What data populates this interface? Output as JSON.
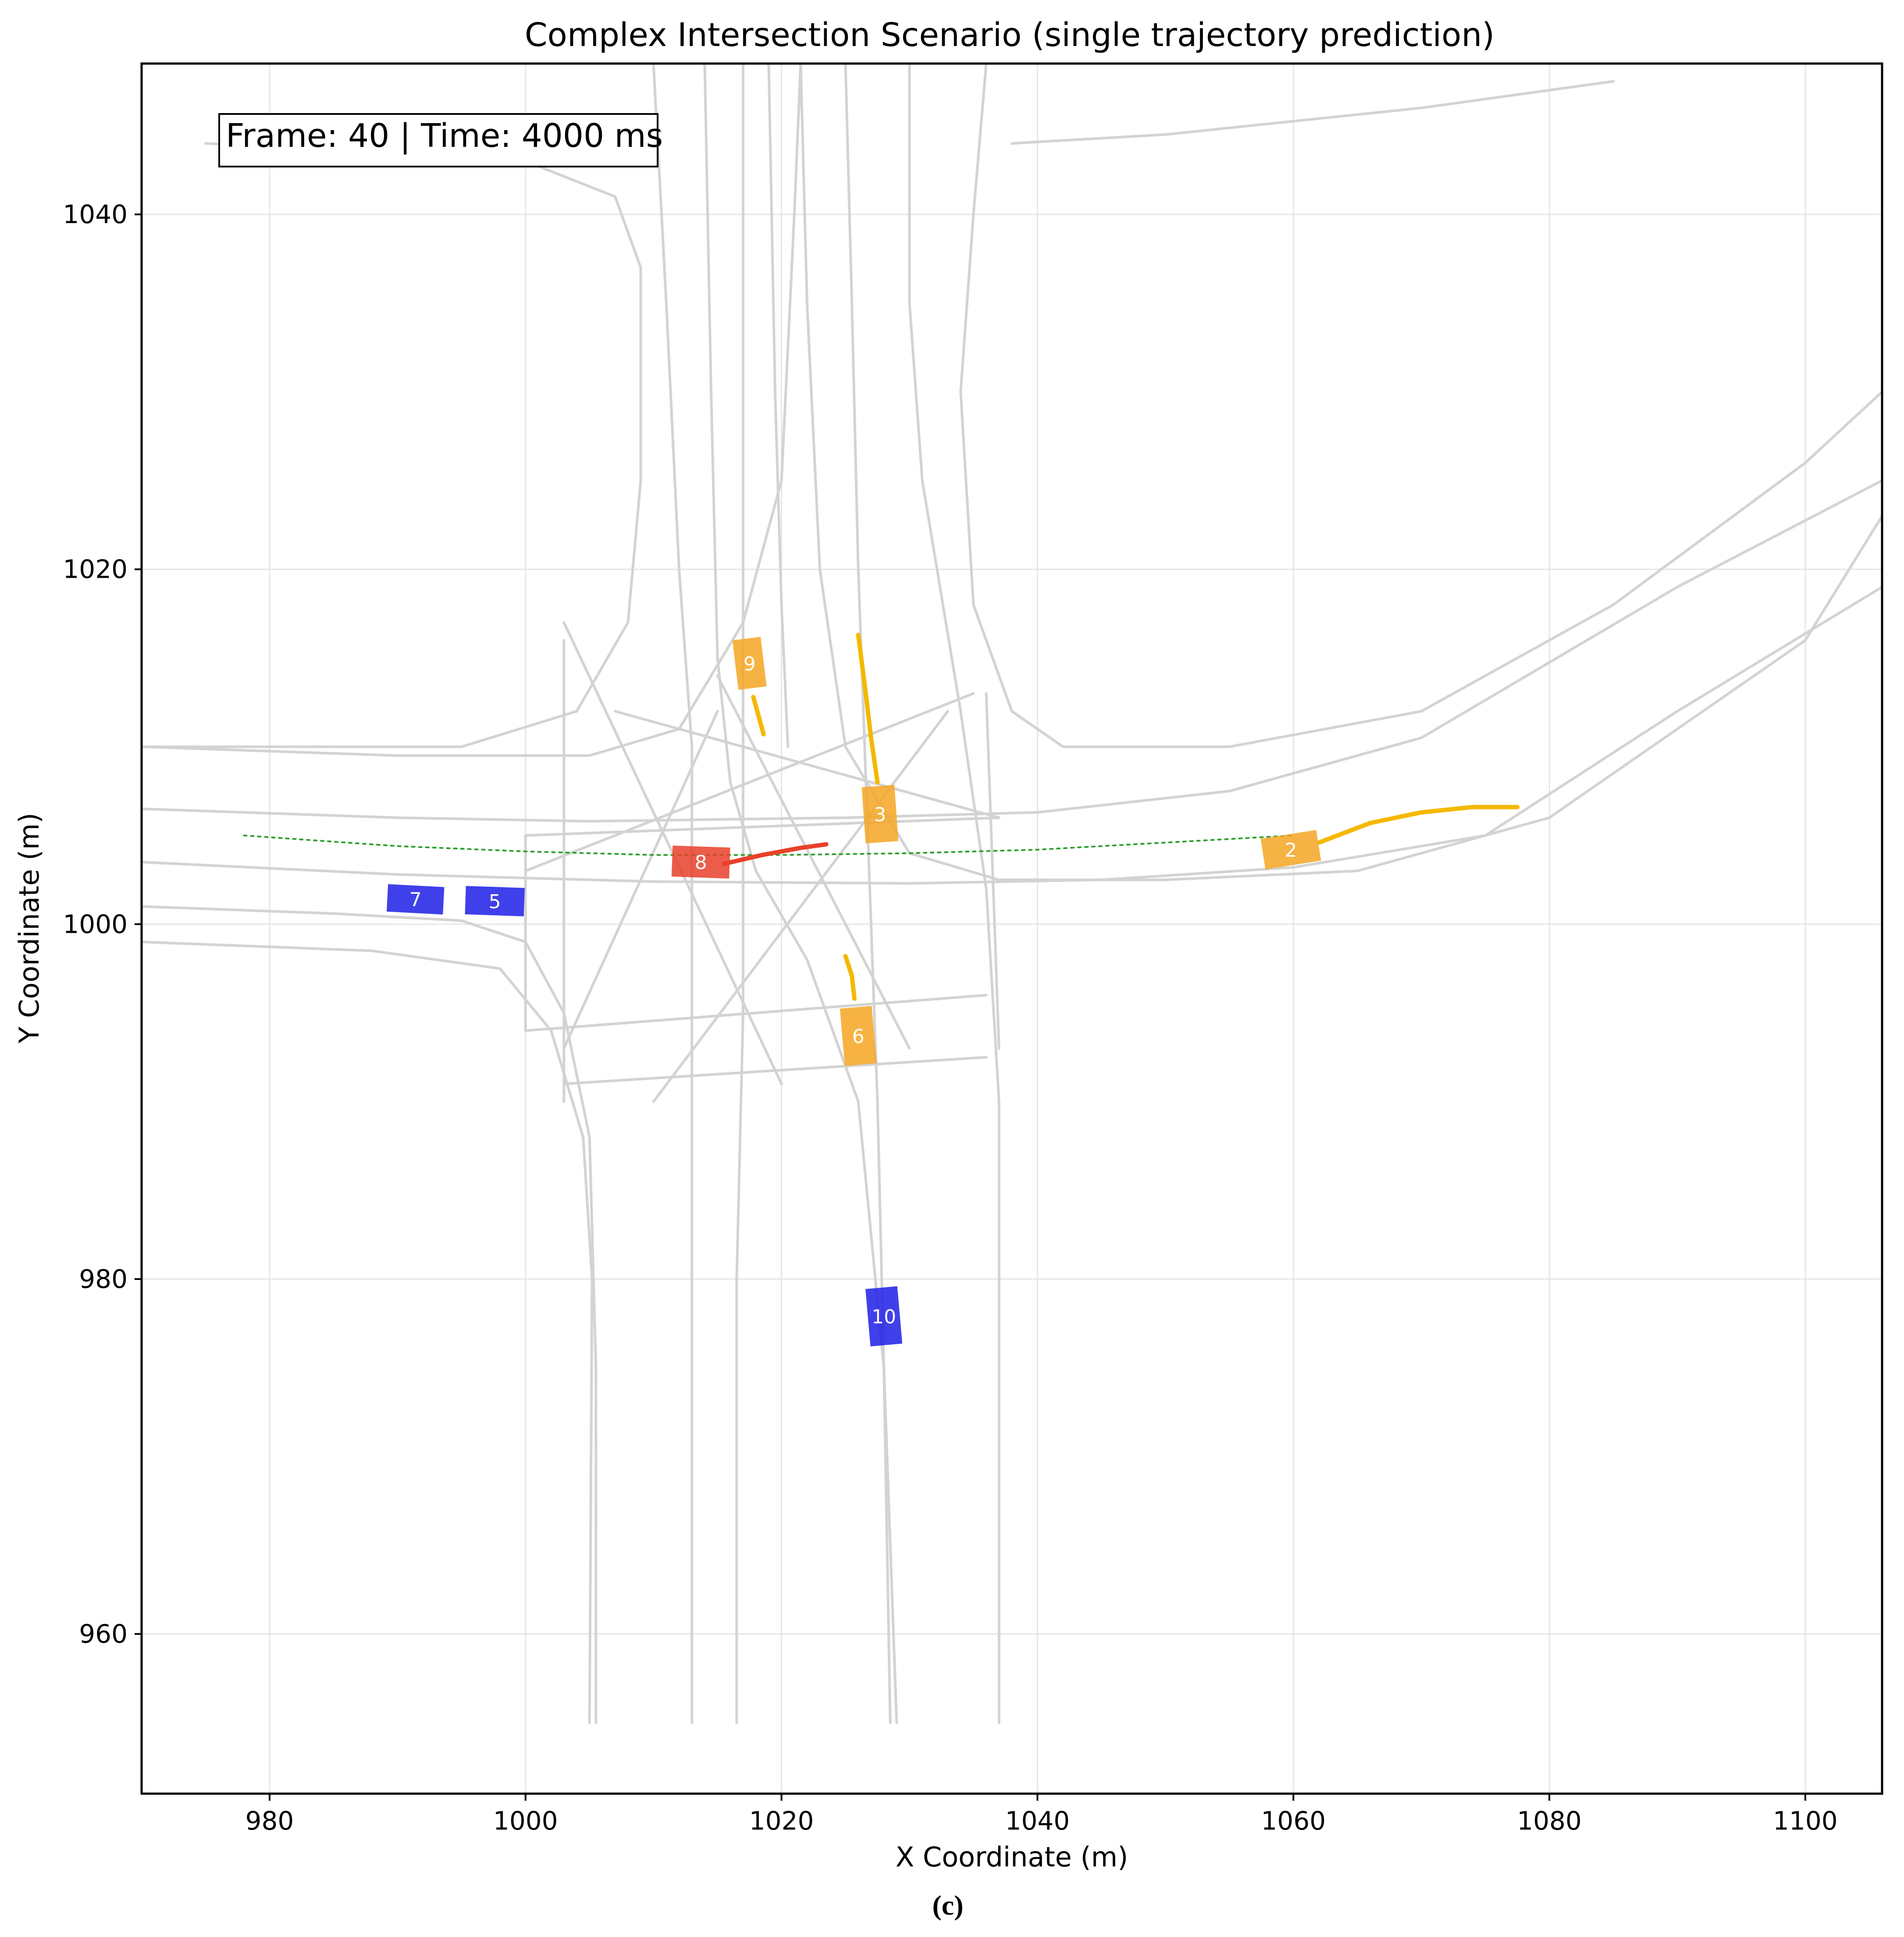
{
  "chart_data": {
    "type": "scatter",
    "title": "Complex Intersection Scenario (single trajectory prediction)",
    "xlabel": "X Coordinate (m)",
    "ylabel": "Y Coordinate (m)",
    "xlim": [
      970,
      1106
    ],
    "ylim": [
      951,
      1048.5
    ],
    "x_ticks": [
      980,
      1000,
      1020,
      1040,
      1060,
      1080,
      1100
    ],
    "y_ticks": [
      960,
      980,
      1000,
      1020,
      1040
    ],
    "x_tick_labels": [
      "980",
      "1000",
      "1020",
      "1040",
      "1060",
      "1080",
      "1100"
    ],
    "y_tick_labels": [
      "960",
      "980",
      "1000",
      "1020",
      "1040"
    ],
    "grid": true,
    "frame_info": "Frame: 40 | Time: 4000 ms",
    "reference_path": {
      "style": "dotted",
      "color": "#2ca02c",
      "points": [
        [
          978,
          1005
        ],
        [
          990,
          1004.4
        ],
        [
          1000,
          1004.1
        ],
        [
          1010,
          1003.9
        ],
        [
          1020,
          1003.9
        ],
        [
          1030,
          1004.0
        ],
        [
          1040,
          1004.2
        ],
        [
          1050,
          1004.6
        ],
        [
          1060,
          1005.0
        ]
      ]
    },
    "colors": {
      "ego": "#e8412a",
      "orange": "#f5a623",
      "blue": "#1f1fe6",
      "predicted_path": "#f5b800",
      "lane": "#d3d3d3"
    },
    "vehicles": [
      {
        "id": "2",
        "group": "orange",
        "x": 1059.8,
        "y": 1004.2,
        "length": 4.4,
        "width": 1.75,
        "heading_deg": 9,
        "trajectory": [
          [
            1062,
            1004.6
          ],
          [
            1066,
            1005.7
          ],
          [
            1070,
            1006.3
          ],
          [
            1074,
            1006.6
          ],
          [
            1077.5,
            1006.6
          ]
        ]
      },
      {
        "id": "3",
        "group": "orange",
        "x": 1027.7,
        "y": 1006.2,
        "length": 4.4,
        "width": 1.85,
        "heading_deg": 94,
        "trajectory": [
          [
            1027.5,
            1008.0
          ],
          [
            1027.0,
            1010.5
          ],
          [
            1026.5,
            1013.5
          ],
          [
            1026.0,
            1016.3
          ]
        ]
      },
      {
        "id": "6",
        "group": "orange",
        "x": 1026.0,
        "y": 993.7,
        "length": 4.5,
        "width": 1.8,
        "heading_deg": 95,
        "trajectory": [
          [
            1025.7,
            995.8
          ],
          [
            1025.5,
            997.1
          ],
          [
            1025.0,
            998.2
          ]
        ]
      },
      {
        "id": "9",
        "group": "orange",
        "x": 1017.5,
        "y": 1014.7,
        "length": 3.9,
        "width": 1.6,
        "heading_deg": 97,
        "trajectory": [
          [
            1017.8,
            1012.8
          ],
          [
            1018.3,
            1011.5
          ],
          [
            1018.6,
            1010.7
          ]
        ]
      },
      {
        "id": "8",
        "group": "ego",
        "x": 1013.7,
        "y": 1003.5,
        "length": 4.5,
        "width": 1.75,
        "heading_deg": -2,
        "trajectory": [
          [
            1015.5,
            1003.4
          ],
          [
            1018.5,
            1003.9
          ],
          [
            1021.5,
            1004.3
          ],
          [
            1023.5,
            1004.5
          ]
        ]
      },
      {
        "id": "5",
        "group": "blue",
        "x": 997.6,
        "y": 1001.3,
        "length": 4.6,
        "width": 1.6,
        "heading_deg": -2,
        "trajectory": []
      },
      {
        "id": "7",
        "group": "blue",
        "x": 991.4,
        "y": 1001.4,
        "length": 4.4,
        "width": 1.55,
        "heading_deg": -3,
        "trajectory": []
      },
      {
        "id": "10",
        "group": "blue",
        "x": 1028.0,
        "y": 977.9,
        "length": 4.5,
        "width": 1.8,
        "heading_deg": 95,
        "trajectory": []
      }
    ],
    "lanes": [
      [
        [
          970,
          1010
        ],
        [
          990,
          1009.5
        ],
        [
          1005,
          1009.5
        ],
        [
          1012,
          1011
        ],
        [
          1017,
          1017
        ],
        [
          1020,
          1025
        ],
        [
          1021,
          1040
        ],
        [
          1021.5,
          1048.5
        ]
      ],
      [
        [
          970,
          1006.5
        ],
        [
          990,
          1006
        ],
        [
          1005,
          1005.8
        ],
        [
          1015,
          1005.9
        ],
        [
          1025,
          1006
        ],
        [
          1040,
          1006.3
        ],
        [
          1055,
          1007.5
        ],
        [
          1070,
          1010.5
        ],
        [
          1090,
          1019
        ],
        [
          1106,
          1025
        ]
      ],
      [
        [
          970,
          1003.5
        ],
        [
          990,
          1002.8
        ],
        [
          1010,
          1002.4
        ],
        [
          1030,
          1002.3
        ],
        [
          1045,
          1002.5
        ],
        [
          1060,
          1003.2
        ],
        [
          1075,
          1005
        ],
        [
          1090,
          1012
        ],
        [
          1106,
          1019
        ]
      ],
      [
        [
          970,
          1001
        ],
        [
          985,
          1000.6
        ],
        [
          995,
          1000.2
        ],
        [
          1000,
          999
        ],
        [
          1003,
          995
        ],
        [
          1005,
          988
        ],
        [
          1005.5,
          975
        ],
        [
          1005.5,
          955
        ]
      ],
      [
        [
          970,
          999
        ],
        [
          988,
          998.5
        ],
        [
          998,
          997.5
        ],
        [
          1002,
          994
        ],
        [
          1004.5,
          988
        ],
        [
          1005.2,
          980
        ],
        [
          1005,
          955
        ]
      ],
      [
        [
          1021.5,
          1048.5
        ],
        [
          1022,
          1035
        ],
        [
          1023,
          1020
        ],
        [
          1025,
          1010
        ],
        [
          1030,
          1004
        ],
        [
          1037,
          1002.5
        ],
        [
          1050,
          1002.5
        ],
        [
          1065,
          1003
        ],
        [
          1080,
          1006
        ],
        [
          1100,
          1016
        ],
        [
          1106,
          1023
        ]
      ],
      [
        [
          1019,
          1048.5
        ],
        [
          1019.5,
          1030
        ],
        [
          1020,
          1018
        ],
        [
          1020.5,
          1010
        ]
      ],
      [
        [
          1014,
          1048.5
        ],
        [
          1014.5,
          1030
        ],
        [
          1015,
          1015
        ],
        [
          1016,
          1008
        ],
        [
          1018,
          1003
        ],
        [
          1022,
          998
        ],
        [
          1026,
          990
        ],
        [
          1028,
          975
        ],
        [
          1029,
          955
        ]
      ],
      [
        [
          1010,
          1048.5
        ],
        [
          1011,
          1035
        ],
        [
          1012,
          1020
        ],
        [
          1013,
          1010
        ],
        [
          1013,
          1000
        ],
        [
          1013,
          990
        ],
        [
          1013,
          970
        ],
        [
          1013,
          955
        ]
      ],
      [
        [
          1017,
          1048.5
        ],
        [
          1017,
          1030
        ],
        [
          1017,
          1015
        ],
        [
          1017,
          1005
        ],
        [
          1017,
          995
        ],
        [
          1016.5,
          980
        ],
        [
          1016.5,
          955
        ]
      ],
      [
        [
          1025,
          1048.5
        ],
        [
          1025.5,
          1035
        ],
        [
          1026,
          1020
        ],
        [
          1026.5,
          1010
        ],
        [
          1027,
          1000
        ],
        [
          1027.5,
          990
        ],
        [
          1028,
          975
        ],
        [
          1028.5,
          955
        ]
      ],
      [
        [
          1030,
          1048.5
        ],
        [
          1030,
          1035
        ],
        [
          1031,
          1025
        ],
        [
          1034,
          1012
        ],
        [
          1036,
          1002
        ],
        [
          1037,
          990
        ],
        [
          1037,
          975
        ],
        [
          1037,
          955
        ]
      ],
      [
        [
          1036,
          1048.5
        ],
        [
          1035,
          1040
        ],
        [
          1034,
          1030
        ],
        [
          1035,
          1018
        ],
        [
          1038,
          1012
        ],
        [
          1042,
          1010
        ],
        [
          1055,
          1010
        ],
        [
          1070,
          1012
        ],
        [
          1085,
          1018
        ],
        [
          1100,
          1026
        ],
        [
          1106,
          1030
        ]
      ],
      [
        [
          975,
          1044
        ],
        [
          990,
          1043.5
        ],
        [
          1000,
          1043
        ],
        [
          1007,
          1041
        ],
        [
          1009,
          1037
        ],
        [
          1009,
          1025
        ],
        [
          1008,
          1017
        ],
        [
          1004,
          1012
        ],
        [
          995,
          1010
        ],
        [
          985,
          1010
        ],
        [
          970,
          1010
        ]
      ],
      [
        [
          1038,
          1044
        ],
        [
          1050,
          1044.5
        ],
        [
          1070,
          1046
        ],
        [
          1085,
          1047.5
        ]
      ],
      [
        [
          1000,
          1005
        ],
        [
          1000,
          994
        ]
      ],
      [
        [
          1000,
          994
        ],
        [
          1036,
          996
        ]
      ],
      [
        [
          1003,
          991
        ],
        [
          1036,
          992.5
        ]
      ],
      [
        [
          1000,
          1005
        ],
        [
          1037,
          1006
        ]
      ],
      [
        [
          1000,
          1003
        ],
        [
          1035,
          1013
        ]
      ],
      [
        [
          1003,
          993
        ],
        [
          1015,
          1012
        ]
      ],
      [
        [
          1003,
          1017
        ],
        [
          1020,
          991
        ]
      ],
      [
        [
          1010,
          990
        ],
        [
          1033,
          1012
        ]
      ],
      [
        [
          1015,
          1014
        ],
        [
          1030,
          993
        ]
      ],
      [
        [
          1007,
          1012
        ],
        [
          1037,
          1006
        ]
      ],
      [
        [
          1003,
          1016
        ],
        [
          1003,
          990
        ]
      ],
      [
        [
          1036,
          1013
        ],
        [
          1037,
          993
        ]
      ]
    ]
  },
  "caption": "(c)"
}
